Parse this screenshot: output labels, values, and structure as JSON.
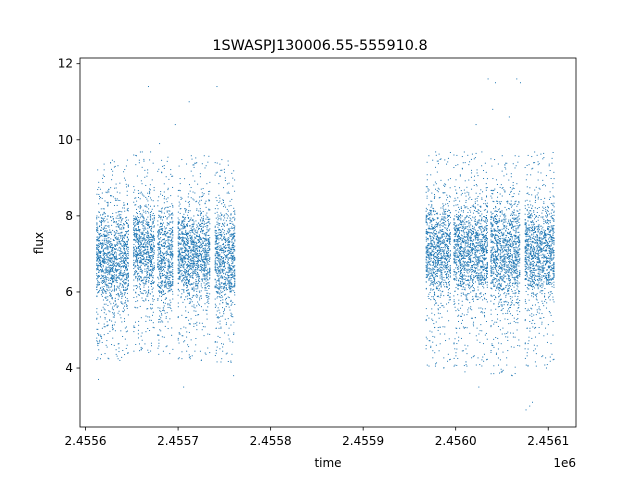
{
  "chart_data": {
    "type": "scatter",
    "title": "1SWASPJ130006.55-555910.8",
    "xlabel": "time",
    "ylabel": "flux",
    "x_offset_label": "1e6",
    "xlim": [
      2455594,
      2456130
    ],
    "ylim": [
      2.45,
      12.15
    ],
    "xticks": [
      2455600,
      2455700,
      2455800,
      2455900,
      2456000,
      2456100
    ],
    "xtick_labels": [
      "2.4556",
      "2.4557",
      "2.4558",
      "2.4559",
      "2.4560",
      "2.4561"
    ],
    "yticks": [
      4,
      6,
      8,
      10,
      12
    ],
    "ytick_labels": [
      "4",
      "6",
      "8",
      "10",
      "12"
    ],
    "grid": false,
    "marker_color": "#1f77b4",
    "series": [
      {
        "segments": [
          {
            "x_range": [
              2455612,
              2455647
            ],
            "center": 6.9,
            "spread": 0.65,
            "low": 4.2
          },
          {
            "x_range": [
              2455652,
              2455675
            ],
            "center": 7.1,
            "spread": 0.6,
            "low": 4.4
          },
          {
            "x_range": [
              2455678,
              2455695
            ],
            "center": 7.0,
            "spread": 0.65,
            "low": 4.3
          },
          {
            "x_range": [
              2455700,
              2455735
            ],
            "center": 7.0,
            "spread": 0.6,
            "low": 4.2
          },
          {
            "x_range": [
              2455740,
              2455762
            ],
            "center": 6.9,
            "spread": 0.6,
            "low": 4.1
          },
          {
            "x_range": [
              2455968,
              2455995
            ],
            "center": 7.1,
            "spread": 0.65,
            "low": 4.0
          },
          {
            "x_range": [
              2455998,
              2456035
            ],
            "center": 7.1,
            "spread": 0.6,
            "low": 4.0
          },
          {
            "x_range": [
              2456038,
              2456070
            ],
            "center": 7.0,
            "spread": 0.7,
            "low": 3.8
          },
          {
            "x_range": [
              2456075,
              2456107
            ],
            "center": 7.1,
            "spread": 0.6,
            "low": 4.0
          }
        ],
        "outliers": [
          [
            2455614,
            3.7
          ],
          [
            2455645,
            4.6
          ],
          [
            2455668,
            11.4
          ],
          [
            2455697,
            10.4
          ],
          [
            2455712,
            11.0
          ],
          [
            2455742,
            11.4
          ],
          [
            2455706,
            3.5
          ],
          [
            2455734,
            8.4
          ],
          [
            2456035,
            11.6
          ],
          [
            2456043,
            11.5
          ],
          [
            2456066,
            11.6
          ],
          [
            2456070,
            11.5
          ],
          [
            2456022,
            10.4
          ],
          [
            2456040,
            10.8
          ],
          [
            2456058,
            10.6
          ],
          [
            2456080,
            3.0
          ],
          [
            2456076,
            2.9
          ],
          [
            2456083,
            3.1
          ],
          [
            2456025,
            3.5
          ],
          [
            2456050,
            3.9
          ],
          [
            2456010,
            3.9
          ],
          [
            2455760,
            3.8
          ],
          [
            2455680,
            9.9
          ],
          [
            2455627,
            9.4
          ]
        ]
      }
    ]
  }
}
